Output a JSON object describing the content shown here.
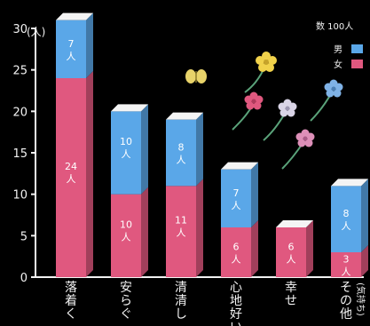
{
  "chart_data": {
    "type": "bar",
    "stacked": true,
    "ylabel": "(人)",
    "ylim": [
      0,
      30
    ],
    "yticks": [
      0,
      5,
      10,
      15,
      20,
      25,
      30
    ],
    "categories": [
      "落着く",
      "安らぐ",
      "清清し",
      "心地好い",
      "幸せ",
      "その他"
    ],
    "category_note": "(気持ち)",
    "legend_title": "数 100人",
    "series": [
      {
        "name": "女",
        "color": "#e0587f",
        "values": [
          24,
          10,
          11,
          6,
          6,
          3
        ],
        "labels": [
          "24人",
          "10人",
          "11人",
          "6人",
          "6人",
          "3人"
        ]
      },
      {
        "name": "男",
        "color": "#5aa7e8",
        "values": [
          7,
          10,
          8,
          7,
          0,
          8
        ],
        "labels": [
          "7人",
          "10人",
          "8人",
          "7人",
          "",
          "8人"
        ]
      }
    ],
    "legend_position": "top-right",
    "grid": false
  }
}
